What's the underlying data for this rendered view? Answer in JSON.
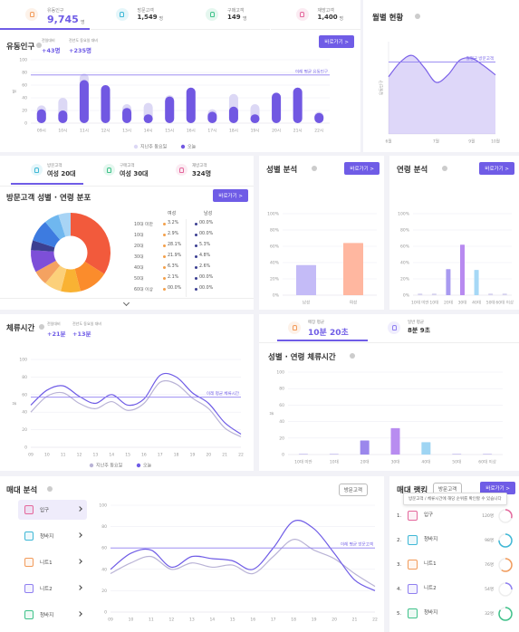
{
  "summary": [
    {
      "label": "유동인구",
      "value": "9,745",
      "unit": "명"
    },
    {
      "label": "방문고객",
      "value": "1,549",
      "unit": "명"
    },
    {
      "label": "구매고객",
      "value": "149",
      "unit": "명"
    },
    {
      "label": "재방고객",
      "value": "1,400",
      "unit": "명"
    }
  ],
  "traffic": {
    "title": "유동인구",
    "button": "바로가기 >",
    "notes": [
      {
        "label": "전일대비",
        "value": "+43명"
      },
      {
        "label": "전년도 동요일 대비",
        "value": "+235명"
      }
    ],
    "chart": {
      "type": "bar",
      "y_label": "명",
      "categories": [
        "09시",
        "10시",
        "11시",
        "12시",
        "13시",
        "14시",
        "15시",
        "16시",
        "17시",
        "18시",
        "19시",
        "20시",
        "21시",
        "22시"
      ],
      "series": [
        {
          "name": "지난주 동요일",
          "color": "#dcd8f5",
          "values": [
            28,
            40,
            78,
            60,
            30,
            32,
            44,
            56,
            22,
            46,
            30,
            48,
            56,
            18
          ]
        },
        {
          "name": "오늘",
          "color": "#7158e2",
          "values": [
            22,
            20,
            68,
            60,
            24,
            14,
            42,
            56,
            18,
            26,
            14,
            48,
            56,
            16
          ]
        }
      ],
      "ylim": [
        0,
        100
      ],
      "yticks": [
        0,
        20,
        40,
        60,
        80,
        100
      ],
      "reference": {
        "label": "이레 평균 유동인구",
        "value": 76,
        "color": "#8f7ff0"
      },
      "legend": "bottom"
    }
  },
  "monthly": {
    "title": "월별 현황",
    "chart": {
      "type": "area",
      "y_label": "유동인구",
      "categories": [
        "6월",
        null,
        null,
        null,
        "7월",
        null,
        null,
        "9월",
        null,
        "10월"
      ],
      "series": [
        {
          "name": "월평균 방문고객",
          "color": "#7b61e8",
          "values": [
            62,
            78,
            85,
            72,
            56,
            64,
            80,
            82,
            74,
            64
          ]
        }
      ],
      "ylim": [
        0,
        100
      ],
      "reference": {
        "label": "월평균 방문고객",
        "value": 78,
        "color": "#8f7ff0"
      }
    }
  },
  "distribution": {
    "tabs": [
      {
        "label": "방문고객",
        "value": "여성 20대"
      },
      {
        "label": "구매고객",
        "value": "여성 30대"
      },
      {
        "label": "재방고객",
        "value": "324명"
      }
    ],
    "title": "방문고객 성별 · 연령 분포",
    "button": "바로가기 >",
    "pie": {
      "type": "pie",
      "values": [
        34,
        12,
        8,
        7,
        6,
        9,
        4,
        9,
        6,
        5
      ],
      "colors": [
        "#f25a3c",
        "#fb8c2c",
        "#f9b233",
        "#fcd07a",
        "#f4a261",
        "#7d4fd8",
        "#3b3f91",
        "#3d7be0",
        "#6fb7ef",
        "#a8d4f5"
      ]
    },
    "table": {
      "headers": [
        "여성",
        "남성"
      ],
      "rows": [
        [
          "10대 미만",
          "3.2%",
          "00.0%"
        ],
        [
          "10대",
          "2.9%",
          "00.0%"
        ],
        [
          "20대",
          "28.1%",
          "5.3%"
        ],
        [
          "30대",
          "21.9%",
          "4.8%"
        ],
        [
          "40대",
          "6.3%",
          "2.6%"
        ],
        [
          "50대",
          "2.1%",
          "00.0%"
        ],
        [
          "60대 이상",
          "00.0%",
          "00.0%"
        ]
      ]
    }
  },
  "gender": {
    "title": "성별 분석",
    "button": "바로가기 >",
    "chart": {
      "type": "bar",
      "categories": [
        "남성",
        "여성"
      ],
      "series": [
        {
          "name": "성별",
          "colors": [
            "#c4bbf7",
            "#ffb7a0"
          ],
          "values": [
            37,
            64
          ]
        }
      ],
      "ylim": [
        0,
        100
      ],
      "yticks": [
        {
          "value": 0,
          "label": "0%"
        },
        {
          "value": 20,
          "label": "20%"
        },
        {
          "value": 40,
          "label": "40%"
        },
        {
          "value": 60,
          "label": "60%"
        },
        {
          "value": 80,
          "label": "80%"
        },
        {
          "value": 100,
          "label": "100%"
        }
      ]
    }
  },
  "age": {
    "title": "연령 분석",
    "button": "바로가기 >",
    "chart": {
      "type": "bar",
      "categories": [
        "10대 미만",
        "10대",
        "20대",
        "30대",
        "40대",
        "50대",
        "60대 이상"
      ],
      "series": [
        {
          "name": "연령",
          "colors": [
            "#d6d2ef",
            "#d6d2ef",
            "#a89af0",
            "#b88af0",
            "#a6d8f6",
            "#d6d2ef",
            "#d6d2ef"
          ],
          "values": [
            2,
            2,
            32,
            62,
            31,
            2,
            2
          ]
        }
      ],
      "ylim": [
        0,
        100
      ],
      "yticks": [
        {
          "value": 0,
          "label": "0%"
        },
        {
          "value": 20,
          "label": "20%"
        },
        {
          "value": 40,
          "label": "40%"
        },
        {
          "value": 60,
          "label": "60%"
        },
        {
          "value": 80,
          "label": "80%"
        },
        {
          "value": 100,
          "label": "100%"
        }
      ]
    }
  },
  "stay": {
    "title": "체류시간",
    "notes": [
      {
        "label": "전일대비",
        "value": "+21분"
      },
      {
        "label": "전년도 동요일 대비",
        "value": "+13분"
      }
    ],
    "chart": {
      "type": "line",
      "y_label": "분",
      "categories": [
        "09",
        "10",
        "11",
        "12",
        "13",
        "14",
        "15",
        "16",
        "17",
        "18",
        "19",
        "20",
        "21",
        "22"
      ],
      "series": [
        {
          "name": "지난주 동요일",
          "color": "#b9b3d6",
          "values": [
            40,
            58,
            62,
            50,
            44,
            52,
            42,
            50,
            74,
            72,
            56,
            44,
            22,
            12
          ]
        },
        {
          "name": "오늘",
          "color": "#6f5ce6",
          "values": [
            48,
            65,
            70,
            58,
            50,
            60,
            48,
            55,
            82,
            80,
            62,
            50,
            28,
            15
          ]
        }
      ],
      "ylim": [
        0,
        100
      ],
      "yticks": [
        0,
        20,
        40,
        60,
        80,
        100
      ],
      "reference": {
        "label": "이레 평균 체류시간",
        "value": 57,
        "color": "#8f7ff0"
      },
      "legend": "bottom"
    }
  },
  "stay_age": {
    "tabs": [
      {
        "label": "매장 평균",
        "value": "10분 20초"
      },
      {
        "label": "일반 평균",
        "value": "8분 9초"
      }
    ],
    "title": "성별 · 연령 체류시간",
    "chart": {
      "type": "bar",
      "y_label": "분",
      "categories": [
        "10대 미만",
        "10대",
        "20대",
        "30대",
        "40대",
        "50대",
        "60대 이상"
      ],
      "series": [
        {
          "name": "체류시간",
          "colors": [
            "#c9c3ef",
            "#c9c3ef",
            "#9b87ec",
            "#b88cf0",
            "#9fd5f3",
            "#c9c3ef",
            "#c9c3ef"
          ],
          "values": [
            1,
            1,
            17,
            32,
            15,
            1,
            1
          ]
        }
      ],
      "ylim": [
        0,
        100
      ],
      "yticks": [
        0,
        20,
        40,
        60,
        80,
        100
      ]
    }
  },
  "shelf": {
    "title": "매대 분석",
    "select": "방문고객",
    "items": [
      "입구",
      "청바지",
      "니트1",
      "니트2",
      "청바지"
    ],
    "chart": {
      "type": "line",
      "categories": [
        "09",
        "10",
        "11",
        "12",
        "13",
        "14",
        "15",
        "16",
        "17",
        "18",
        "19",
        "20",
        "21",
        "22"
      ],
      "series": [
        {
          "name": "지난주 동요일",
          "color": "#b9b3d6",
          "values": [
            36,
            46,
            52,
            40,
            46,
            42,
            44,
            36,
            52,
            68,
            58,
            50,
            36,
            24
          ]
        },
        {
          "name": "오늘",
          "color": "#6f5ce6",
          "values": [
            40,
            55,
            58,
            42,
            52,
            50,
            48,
            40,
            60,
            85,
            78,
            55,
            30,
            20
          ]
        }
      ],
      "ylim": [
        0,
        100
      ],
      "yticks": [
        0,
        20,
        40,
        60,
        80,
        100
      ],
      "reference": {
        "label": "이레 평균 방문고객",
        "value": 60,
        "color": "#8f7ff0"
      }
    }
  },
  "ranking": {
    "title": "매대 랭킹",
    "select": "방문고객",
    "button": "바로가기 >",
    "tooltip": "방문고객 / 체류시간에 해당 순위를 확인할 수 있습니다",
    "items": [
      {
        "rank": "1.",
        "name": "입구",
        "count": "120명",
        "ratio": 30
      },
      {
        "rank": "2.",
        "name": "청바지",
        "count": "98명",
        "ratio": 75
      },
      {
        "rank": "3.",
        "name": "니트1",
        "count": "76명",
        "ratio": 60
      },
      {
        "rank": "4.",
        "name": "니트2",
        "count": "54명",
        "ratio": 25
      },
      {
        "rank": "5.",
        "name": "청바지",
        "count": "32명",
        "ratio": 85
      }
    ]
  }
}
